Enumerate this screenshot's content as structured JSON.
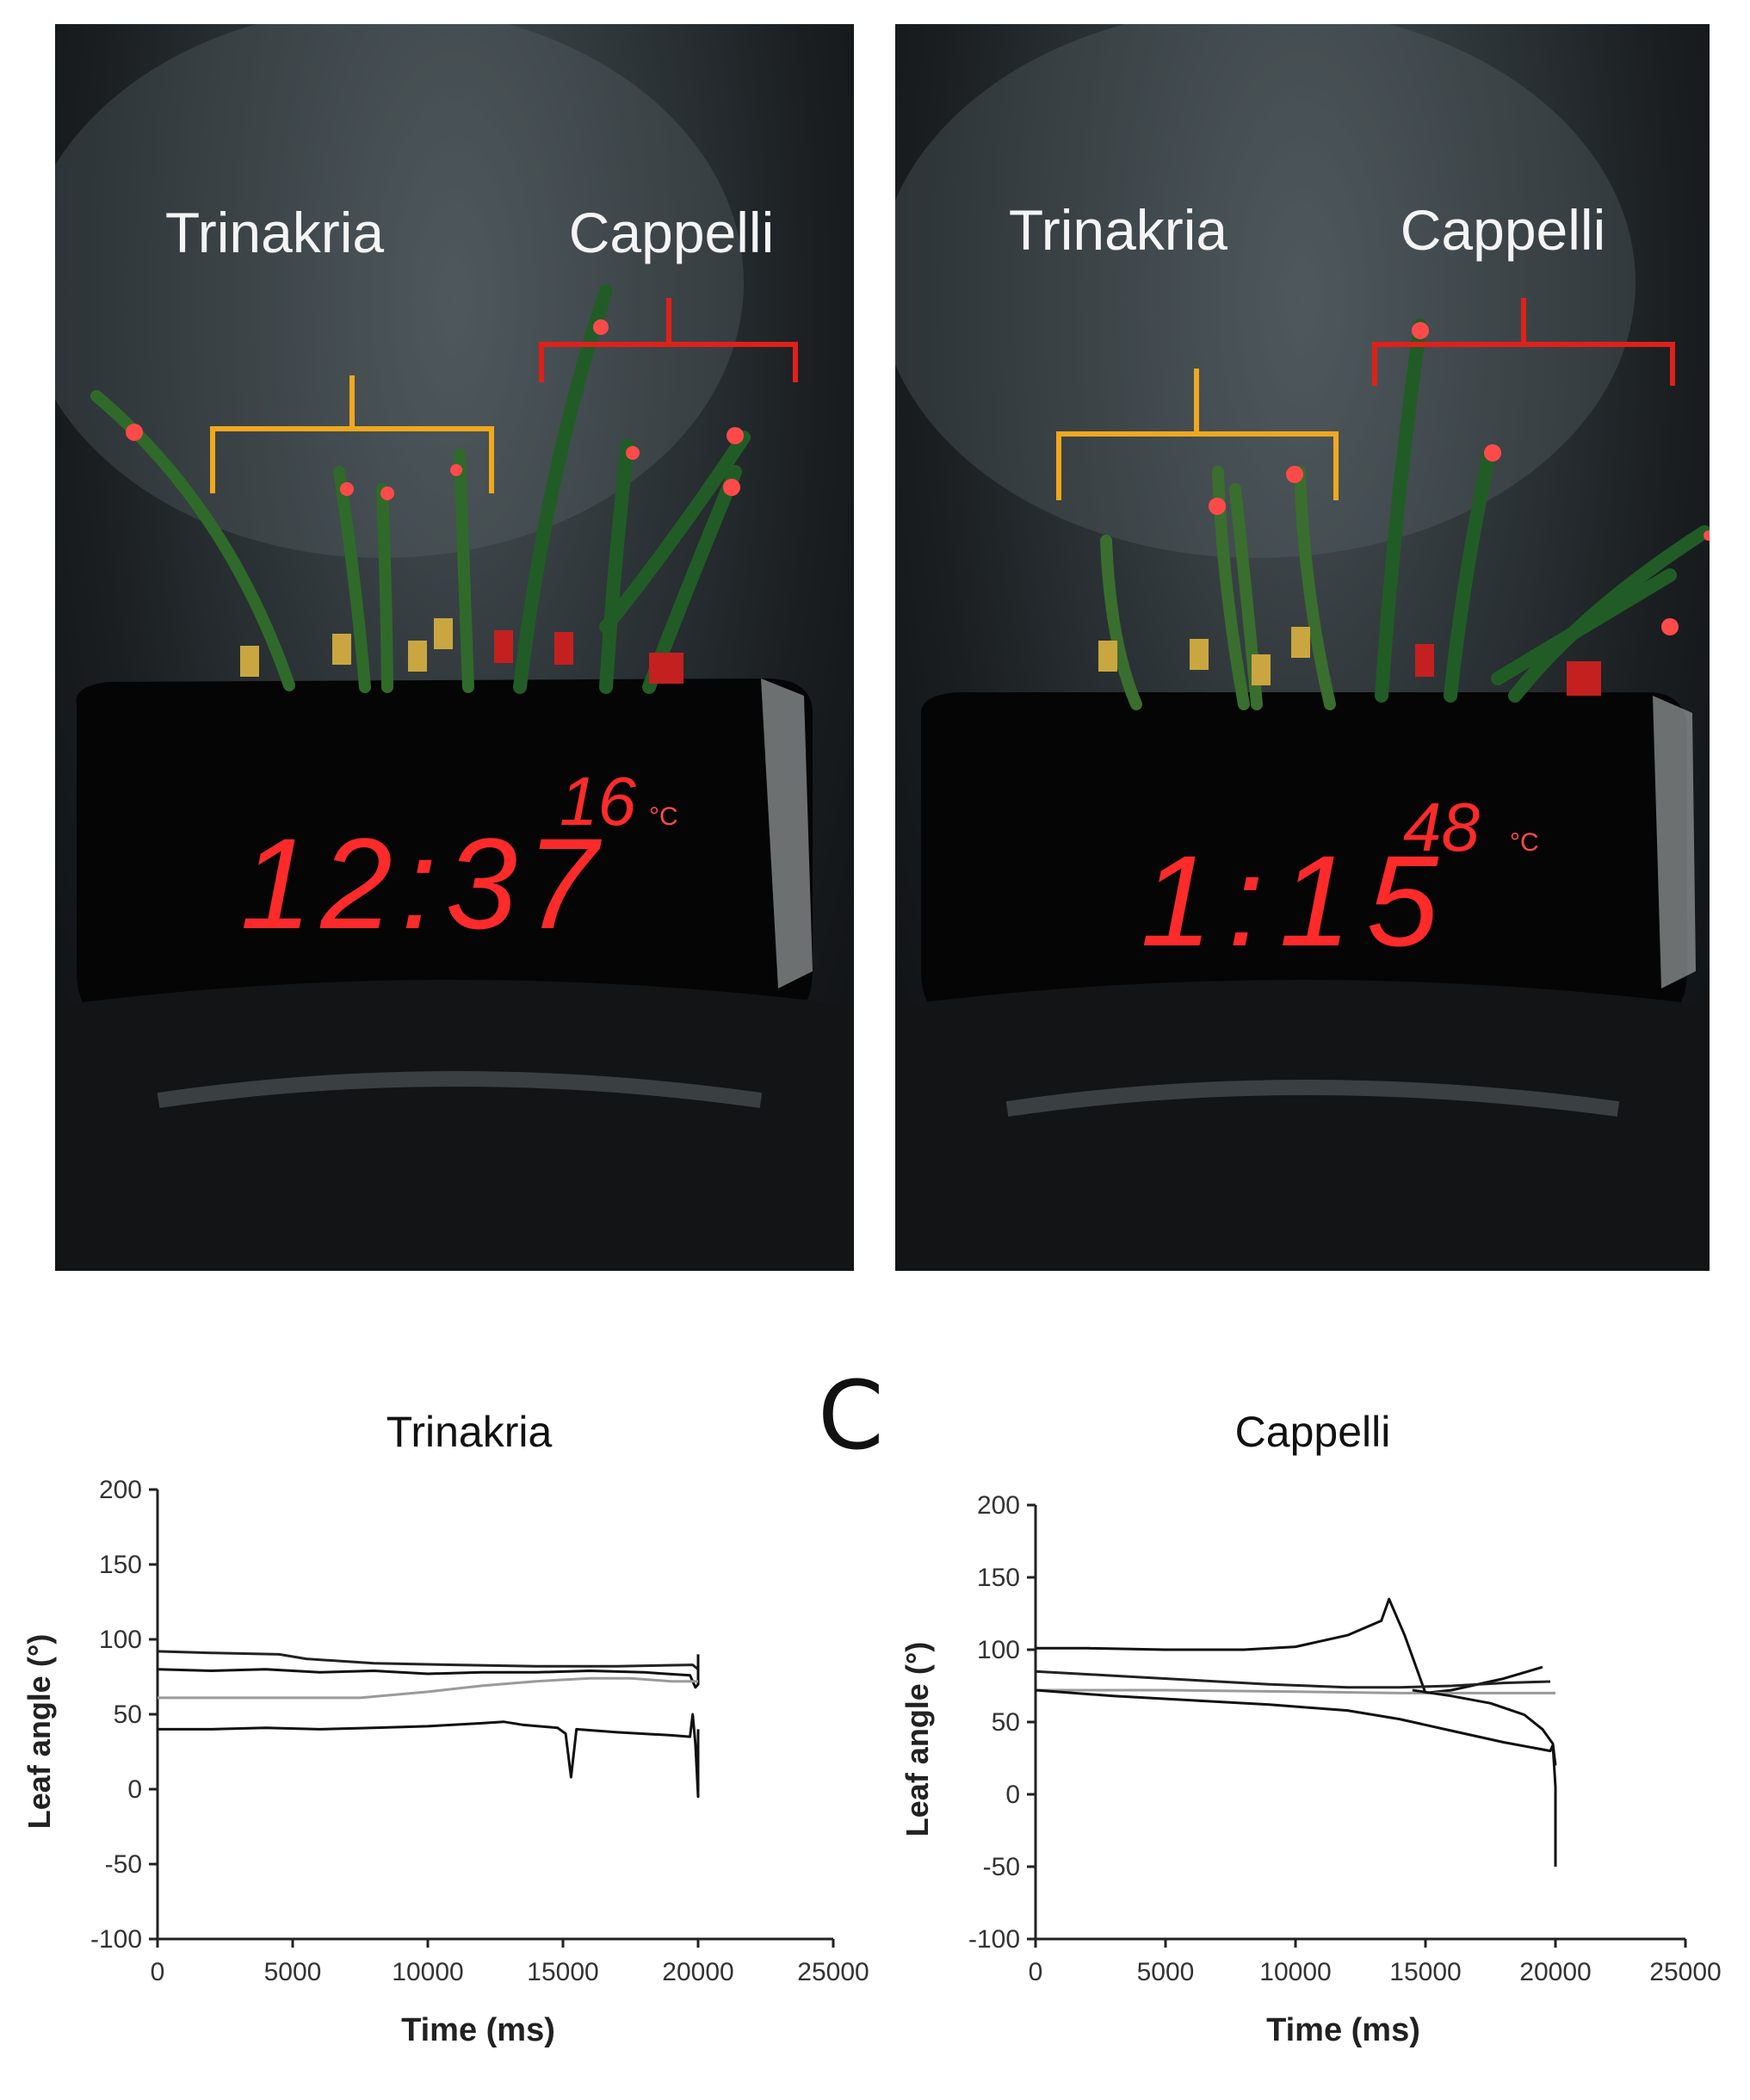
{
  "photos": [
    {
      "label_left": "Trinakria",
      "label_right": "Cappelli",
      "clock_time": "12:37",
      "clock_temp": "16",
      "temp_unit": "°C",
      "accent_yellow": "#f0a81e",
      "accent_red": "#e0201a"
    },
    {
      "label_left": "Trinakria",
      "label_right": "Cappelli",
      "clock_time": "1:15",
      "clock_temp": "48",
      "temp_unit": "°C",
      "accent_yellow": "#f0a81e",
      "accent_red": "#e0201a"
    }
  ],
  "panel_letter": "C",
  "chart_data": [
    {
      "type": "line",
      "title": "Trinakria",
      "xlabel": "Time (ms)",
      "ylabel": "Leaf angle (°)",
      "xlim": [
        0,
        25000
      ],
      "ylim": [
        -100,
        200
      ],
      "xticks": [
        "0",
        "5000",
        "10000",
        "15000",
        "20000",
        "25000"
      ],
      "yticks": [
        "200",
        "150",
        "100",
        "50",
        "0",
        "-50",
        "-100"
      ],
      "grid": false,
      "series": [
        {
          "color": "#222222",
          "points": [
            [
              0,
              92
            ],
            [
              2000,
              91
            ],
            [
              4500,
              90
            ],
            [
              5500,
              87
            ],
            [
              8000,
              84
            ],
            [
              11000,
              83
            ],
            [
              14000,
              82
            ],
            [
              17000,
              82
            ],
            [
              19800,
              83
            ],
            [
              20000,
              80
            ]
          ]
        },
        {
          "color": "#111111",
          "points": [
            [
              0,
              80
            ],
            [
              2000,
              79
            ],
            [
              4000,
              80
            ],
            [
              6000,
              78
            ],
            [
              8000,
              79
            ],
            [
              10000,
              77
            ],
            [
              12000,
              78
            ],
            [
              14000,
              78
            ],
            [
              16000,
              79
            ],
            [
              18000,
              78
            ],
            [
              19700,
              76
            ],
            [
              19800,
              72
            ],
            [
              19900,
              68
            ],
            [
              20000,
              70
            ],
            [
              20000,
              90
            ]
          ]
        },
        {
          "color": "#9a9a9a",
          "points": [
            [
              0,
              61
            ],
            [
              6000,
              61
            ],
            [
              7500,
              61
            ],
            [
              10000,
              65
            ],
            [
              12000,
              69
            ],
            [
              14000,
              72
            ],
            [
              16000,
              74
            ],
            [
              17500,
              74
            ],
            [
              19000,
              72
            ],
            [
              20000,
              72
            ]
          ]
        },
        {
          "color": "#111111",
          "points": [
            [
              0,
              40
            ],
            [
              2000,
              40
            ],
            [
              4000,
              41
            ],
            [
              6000,
              40
            ],
            [
              8000,
              41
            ],
            [
              10000,
              42
            ],
            [
              12000,
              44
            ],
            [
              12800,
              45
            ],
            [
              13500,
              43
            ],
            [
              14800,
              41
            ],
            [
              15100,
              37
            ],
            [
              15300,
              8
            ],
            [
              15500,
              40
            ],
            [
              17000,
              38
            ],
            [
              19000,
              36
            ],
            [
              19700,
              35
            ],
            [
              19800,
              50
            ],
            [
              19900,
              30
            ],
            [
              20000,
              -5
            ],
            [
              20000,
              40
            ]
          ]
        }
      ]
    },
    {
      "type": "line",
      "title": "Cappelli",
      "xlabel": "Time (ms)",
      "ylabel": "Leaf angle (°)",
      "xlim": [
        0,
        25000
      ],
      "ylim": [
        -100,
        200
      ],
      "xticks": [
        "0",
        "5000",
        "10000",
        "15000",
        "20000",
        "25000"
      ],
      "yticks": [
        "200",
        "150",
        "100",
        "50",
        "0",
        "-50",
        "-100"
      ],
      "grid": false,
      "series": [
        {
          "color": "#111111",
          "points": [
            [
              0,
              101
            ],
            [
              2000,
              101
            ],
            [
              5000,
              100
            ],
            [
              8000,
              100
            ],
            [
              10000,
              102
            ],
            [
              12000,
              110
            ],
            [
              13300,
              120
            ],
            [
              13600,
              135
            ],
            [
              14200,
              110
            ],
            [
              14600,
              90
            ],
            [
              15000,
              70
            ],
            [
              16000,
              72
            ],
            [
              18000,
              80
            ],
            [
              19500,
              88
            ]
          ]
        },
        {
          "color": "#222222",
          "points": [
            [
              0,
              85
            ],
            [
              3000,
              82
            ],
            [
              6000,
              79
            ],
            [
              9000,
              76
            ],
            [
              12000,
              74
            ],
            [
              14000,
              74
            ],
            [
              16000,
              75
            ],
            [
              18000,
              77
            ],
            [
              19800,
              78
            ]
          ]
        },
        {
          "color": "#9a9a9a",
          "points": [
            [
              0,
              72
            ],
            [
              5000,
              72
            ],
            [
              10000,
              71
            ],
            [
              14000,
              70
            ],
            [
              17000,
              70
            ],
            [
              20000,
              70
            ]
          ]
        },
        {
          "color": "#111111",
          "points": [
            [
              0,
              72
            ],
            [
              3000,
              68
            ],
            [
              6000,
              65
            ],
            [
              9000,
              62
            ],
            [
              12000,
              58
            ],
            [
              14000,
              52
            ],
            [
              16000,
              44
            ],
            [
              18000,
              36
            ],
            [
              19500,
              31
            ],
            [
              19800,
              30
            ],
            [
              19900,
              34
            ],
            [
              20000,
              5
            ],
            [
              20000,
              -50
            ]
          ]
        },
        {
          "color": "#111111",
          "points": [
            [
              14500,
              72
            ],
            [
              16000,
              68
            ],
            [
              17500,
              63
            ],
            [
              18800,
              55
            ],
            [
              19500,
              45
            ],
            [
              19900,
              35
            ],
            [
              20000,
              20
            ]
          ]
        }
      ]
    }
  ]
}
